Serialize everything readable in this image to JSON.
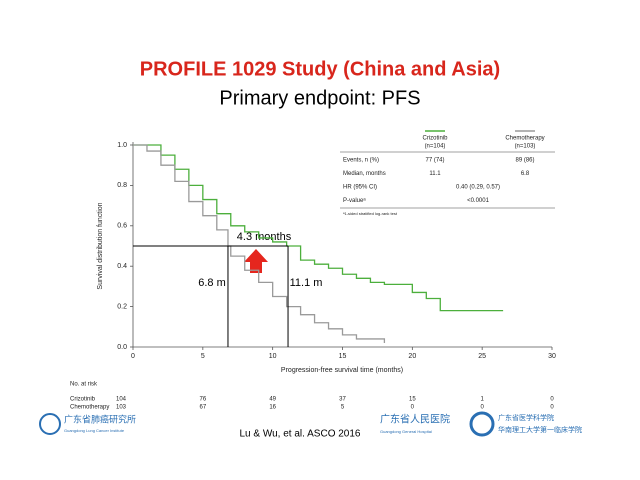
{
  "chart_data": {
    "type": "step",
    "title": "PROFILE 1029 Study (China and Asia)",
    "subtitle": "Primary endpoint: PFS",
    "x_label": "Progression-free survival time (months)",
    "y_label": "Survival distribution function",
    "xlim": [
      0,
      30
    ],
    "ylim": [
      0,
      1
    ],
    "xticks": [
      0,
      5,
      10,
      15,
      20,
      25,
      30
    ],
    "yticks": [
      {
        "value": 0,
        "label": "0.0"
      },
      0.2,
      0.4,
      0.6,
      0.8,
      {
        "value": 1,
        "label": "1.0"
      }
    ],
    "series": [
      {
        "name": "Crizotinib",
        "color": "#4caf3c",
        "x": [
          0,
          1,
          2,
          3,
          4,
          5,
          6,
          7,
          8,
          9,
          10,
          11,
          12,
          13,
          14,
          15,
          16,
          17,
          18,
          20,
          21,
          22,
          26.5
        ],
        "values": [
          1,
          1,
          0.95,
          0.88,
          0.8,
          0.73,
          0.66,
          0.6,
          0.57,
          0.54,
          0.52,
          0.5,
          0.43,
          0.41,
          0.39,
          0.36,
          0.34,
          0.32,
          0.31,
          0.27,
          0.24,
          0.18,
          0.18
        ]
      },
      {
        "name": "Chemotherapy",
        "color": "#9a9a9a",
        "x": [
          0,
          1,
          2,
          3,
          4,
          5,
          6,
          6.8,
          7,
          8,
          9,
          10,
          11,
          12,
          13,
          14,
          15,
          16,
          18
        ],
        "values": [
          1,
          0.97,
          0.9,
          0.82,
          0.72,
          0.65,
          0.58,
          0.5,
          0.45,
          0.38,
          0.32,
          0.25,
          0.2,
          0.16,
          0.12,
          0.09,
          0.06,
          0.04,
          0.02
        ]
      }
    ],
    "reference_lines": {
      "y": 0.5,
      "x": [
        6.8,
        11.1
      ],
      "color": "#000000"
    },
    "annotations": [
      "4.3 months",
      "6.8 m",
      "11.1 m"
    ],
    "table": {
      "n": [
        "(n=104)",
        "(n=103)"
      ],
      "rows": [
        [
          "Events, n (%)",
          "77 (74)",
          "89 (86)"
        ],
        [
          "Median, months",
          "11.1",
          "6.8"
        ],
        [
          "HR (95% CI)",
          "0.40 (0.29, 0.57)"
        ],
        [
          "P-valueᵃ",
          "<0.0001"
        ]
      ],
      "footnote": "ᵃ1-sided stratified log-rank test"
    },
    "at_risk": {
      "title": "No. at risk",
      "rows": [
        {
          "name": "Crizotinib",
          "counts": [
            "104",
            "76",
            "49",
            "37",
            "15",
            "1",
            "0"
          ]
        },
        {
          "name": "Chemotherapy",
          "counts": [
            "103",
            "67",
            "16",
            "5",
            "0",
            "0",
            "0"
          ]
        }
      ]
    }
  },
  "footer": {
    "citation": "Lu & Wu, et al. ASCO 2016",
    "logo_left": [
      "广东省肺癌研究所",
      "Guangdong Lung Cancer Institute"
    ],
    "logo_right": [
      "广东省人民医院",
      "Guangdong General Hospital"
    ],
    "logo_right2": [
      "广东省医学科学院",
      "华南理工大学第一临床学院"
    ]
  }
}
